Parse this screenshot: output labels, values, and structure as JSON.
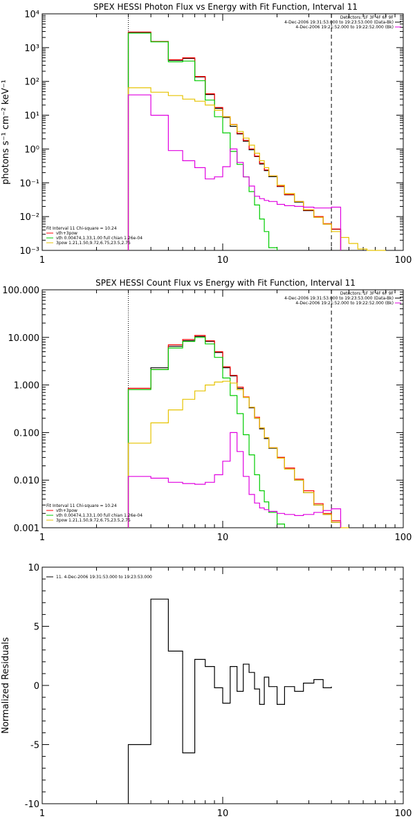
{
  "chart_data": [
    {
      "type": "line",
      "title": "SPEX HESSI Photon Flux vs Energy with Fit Function, Interval 11",
      "xlabel": "",
      "ylabel": "photons s⁻¹ cm⁻² keV⁻¹",
      "xscale": "log",
      "yscale": "log",
      "xlim": [
        1,
        100
      ],
      "ylim": [
        0.001,
        10000
      ],
      "xticks": [
        1,
        10,
        100
      ],
      "xtick_labels": [
        "1",
        "10",
        "100"
      ],
      "yticks": [
        0.001,
        0.01,
        0.1,
        1,
        10,
        100,
        1000,
        10000
      ],
      "ytick_labels": [
        "10⁻³",
        "10⁻²",
        "10⁻¹",
        "10⁰",
        "10¹",
        "10²",
        "10³",
        "10⁴"
      ],
      "vlines": [
        {
          "x": 3,
          "style": "dotted"
        },
        {
          "x": 40,
          "style": "dashed"
        }
      ],
      "legend_topright": [
        "Detectors: 1F 3F 4F 6F 9F",
        "4-Dec-2006 19:31:53.000 to 19:23:53.000 (Data-Bk)",
        "4-Dec-2006 19:21:52.000 to 19:22:52.000 (Bk)"
      ],
      "legend_bottomleft": [
        "Fit Interval 11    Chi-square = 10.24",
        "vth+3pow",
        "vth 0.00474,1.33,1.00  full chian 1.26e-04",
        "3pow 1.21,1.50,9.72,6.75,23.5,2.75"
      ],
      "bin_edges": [
        3,
        4,
        5,
        6,
        7,
        8,
        9,
        10,
        11,
        12,
        13,
        14,
        15,
        16,
        17,
        18,
        20,
        22,
        25,
        28,
        32,
        36,
        40,
        45,
        50,
        56,
        63,
        71,
        80
      ],
      "series": [
        {
          "name": "Data",
          "color": "#000000",
          "values": [
            2800,
            1500,
            420,
            480,
            135,
            41,
            16,
            8.6,
            4.7,
            2.8,
            1.7,
            0.95,
            0.6,
            0.36,
            0.23,
            0.152,
            0.078,
            0.044,
            0.027,
            0.015,
            0.0096,
            0.006,
            0.0042,
            null,
            null,
            null,
            null,
            null
          ]
        },
        {
          "name": "vth+3pow",
          "color": "#ff0000",
          "values": [
            2900,
            1520,
            440,
            500,
            140,
            43,
            17,
            9,
            5.3,
            2.9,
            1.8,
            1.0,
            0.62,
            0.38,
            0.24,
            0.16,
            0.08,
            0.045,
            0.028,
            0.0155,
            0.01,
            0.0062,
            0.0043,
            null,
            null,
            null,
            null,
            null
          ]
        },
        {
          "name": "vth",
          "color": "#00cc00",
          "values": [
            2700,
            1480,
            380,
            400,
            105,
            28,
            9,
            3,
            0.85,
            0.35,
            0.15,
            0.055,
            0.022,
            0.0085,
            0.0036,
            0.0012,
            null,
            null,
            null,
            null,
            null,
            null,
            null,
            null,
            null,
            null,
            null,
            null
          ]
        },
        {
          "name": "3pow",
          "color": "#e6c300",
          "values": [
            65,
            48,
            38,
            30,
            26,
            20,
            14,
            9,
            5.2,
            3.3,
            2.1,
            1.3,
            0.75,
            0.45,
            0.28,
            0.16,
            0.085,
            0.048,
            0.028,
            0.016,
            0.0095,
            0.006,
            0.0036,
            0.0024,
            0.0016,
            0.0011,
            0.001,
            0.001
          ]
        },
        {
          "name": "Bk",
          "color": "#e000e0",
          "values": [
            40,
            10,
            0.9,
            0.45,
            0.28,
            0.13,
            0.15,
            0.3,
            1.0,
            0.4,
            0.15,
            0.08,
            0.04,
            0.034,
            0.03,
            0.028,
            0.023,
            0.021,
            0.02,
            0.019,
            0.018,
            0.018,
            0.019,
            null,
            null,
            null,
            null,
            null
          ]
        }
      ]
    },
    {
      "type": "line",
      "title": "SPEX HESSI Count Flux vs Energy with Fit Function, Interval 11",
      "xlabel": "",
      "ylabel": "",
      "xscale": "log",
      "yscale": "log",
      "xlim": [
        1,
        100
      ],
      "ylim": [
        0.001,
        100
      ],
      "xticks": [
        1,
        10,
        100
      ],
      "xtick_labels": [
        "1",
        "10",
        "100"
      ],
      "yticks": [
        0.001,
        0.01,
        0.1,
        1,
        10,
        100
      ],
      "ytick_labels": [
        "0.001",
        "0.010",
        "0.100",
        "1.000",
        "10.000",
        "100.000"
      ],
      "vlines": [
        {
          "x": 3,
          "style": "dotted"
        },
        {
          "x": 40,
          "style": "dashed"
        }
      ],
      "legend_topright": [
        "Detectors: 1F 3F 4F 6F 9F",
        "4-Dec-2006 19:31:53.000 to 19:23:53.000 (Data-Bk)",
        "4-Dec-2006 19:21:52.000 to 19:22:52.000 (Bk)"
      ],
      "legend_bottomleft": [
        "Fit Interval 11    Chi-square = 10.24",
        "vth+3pow",
        "vth 0.00474,1.33,1.00  full chian 1.26e-04",
        "3pow 1.21,1.50,9.72,6.75,23.5,2.75"
      ],
      "bin_edges": [
        3,
        4,
        5,
        6,
        7,
        8,
        9,
        10,
        11,
        12,
        13,
        14,
        15,
        16,
        17,
        18,
        20,
        22,
        25,
        28,
        32,
        36,
        40,
        45,
        50,
        56,
        63,
        71,
        80
      ],
      "series": [
        {
          "name": "Data",
          "color": "#000000",
          "values": [
            0.85,
            2.3,
            6.5,
            8.5,
            10.5,
            8.2,
            4.8,
            2.3,
            1.55,
            0.85,
            0.55,
            0.33,
            0.2,
            0.12,
            0.075,
            0.047,
            0.03,
            0.018,
            0.01,
            0.0055,
            0.003,
            0.0019,
            0.0013,
            null,
            null,
            null,
            null,
            null
          ]
        },
        {
          "name": "vth+3pow",
          "color": "#ff0000",
          "values": [
            0.85,
            2.1,
            7,
            9,
            11,
            8.5,
            5,
            2.4,
            1.6,
            0.9,
            0.56,
            0.34,
            0.21,
            0.125,
            0.078,
            0.048,
            0.03,
            0.018,
            0.0105,
            0.006,
            0.0032,
            0.002,
            0.0014,
            null,
            null,
            null,
            null,
            null
          ]
        },
        {
          "name": "vth",
          "color": "#00cc00",
          "values": [
            0.8,
            2.1,
            6,
            8.2,
            10,
            7.3,
            3.8,
            1.4,
            0.6,
            0.25,
            0.09,
            0.034,
            0.013,
            0.006,
            0.0035,
            0.0021,
            0.0012,
            null,
            null,
            null,
            null,
            null,
            null,
            null,
            null,
            null,
            null,
            null
          ]
        },
        {
          "name": "3pow",
          "color": "#e6c300",
          "values": [
            0.06,
            0.16,
            0.3,
            0.5,
            0.75,
            1.0,
            1.15,
            1.2,
            1.1,
            0.8,
            0.55,
            0.34,
            0.2,
            0.125,
            0.078,
            0.048,
            0.029,
            0.017,
            0.01,
            0.0055,
            0.003,
            0.0019,
            0.0013,
            0.001,
            null,
            null,
            null,
            null
          ]
        },
        {
          "name": "Bk",
          "color": "#e000e0",
          "values": [
            0.012,
            0.011,
            0.009,
            0.0085,
            0.0082,
            0.009,
            0.013,
            0.025,
            0.1,
            0.04,
            0.012,
            0.005,
            0.0033,
            0.0026,
            0.0024,
            0.0022,
            0.002,
            0.0019,
            0.0018,
            0.0019,
            0.0021,
            0.0023,
            0.0025,
            null,
            null,
            null,
            null,
            null
          ]
        }
      ]
    },
    {
      "type": "line",
      "title": "",
      "xlabel": "",
      "ylabel": "Normalized Residuals",
      "xscale": "log",
      "yscale": "linear",
      "xlim": [
        1,
        100
      ],
      "ylim": [
        -10,
        10
      ],
      "xticks": [
        1,
        10,
        100
      ],
      "xtick_labels": [
        "1",
        "10",
        "100"
      ],
      "yticks": [
        -10,
        -5,
        0,
        5,
        10
      ],
      "ytick_labels": [
        "-10",
        "-5",
        "0",
        "5",
        "10"
      ],
      "legend_topleft": [
        "11.  4-Dec-2006 19:31:53.000 to 19:23:53.000"
      ],
      "bin_edges": [
        3,
        4,
        5,
        6,
        7,
        8,
        9,
        10,
        11,
        12,
        13,
        14,
        15,
        16,
        17,
        18,
        20,
        22,
        25,
        28,
        32,
        36,
        40
      ],
      "series": [
        {
          "name": "11.  4-Dec-2006 19:31:53.000 to 19:23:53.000",
          "color": "#000000",
          "values": [
            -5,
            7.3,
            2.9,
            -5.7,
            2.2,
            1.6,
            -0.2,
            -1.5,
            1.6,
            -0.5,
            1.8,
            1.1,
            -0.3,
            -1.6,
            0.7,
            -0.1,
            -1.6,
            -0.1,
            -0.5,
            0.2,
            0.5,
            -0.2,
            -0.1
          ],
          "baseline": -10
        }
      ]
    }
  ]
}
